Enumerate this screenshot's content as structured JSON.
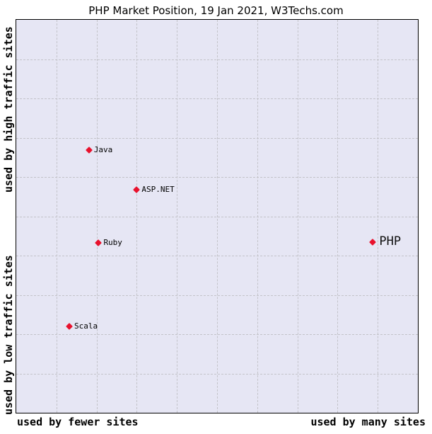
{
  "title": "PHP Market Position, 19 Jan 2021, W3Techs.com",
  "axes": {
    "y_top_label": "used by high traffic sites",
    "y_bottom_label": "used by low traffic sites",
    "x_left_label": "used by fewer sites",
    "x_right_label": "used by many sites"
  },
  "colors": {
    "marker": "#e8112d",
    "plot_bg": "#e6e6f4",
    "grid": "#c3c3c9",
    "border": "#000000"
  },
  "chart_data": {
    "type": "scatter",
    "title": "PHP Market Position, 19 Jan 2021, W3Techs.com",
    "x_axis": {
      "label_left": "used by fewer sites",
      "label_right": "used by many sites",
      "range_pct": [
        0,
        100
      ],
      "ticks": "none",
      "grid": true,
      "grid_divisions": 10
    },
    "y_axis": {
      "label_top": "used by high traffic sites",
      "label_bottom": "used by low traffic sites",
      "range_pct": [
        0,
        100
      ],
      "ticks": "none",
      "grid": true,
      "grid_divisions": 10
    },
    "legend": "none",
    "points": [
      {
        "name": "Java",
        "x_pct": 18.1,
        "y_pct_from_top": 33.2,
        "emphasis": false
      },
      {
        "name": "ASP.NET",
        "x_pct": 30.0,
        "y_pct_from_top": 43.3,
        "emphasis": false
      },
      {
        "name": "Ruby",
        "x_pct": 20.5,
        "y_pct_from_top": 56.7,
        "emphasis": false
      },
      {
        "name": "PHP",
        "x_pct": 88.8,
        "y_pct_from_top": 56.6,
        "emphasis": true
      },
      {
        "name": "Scala",
        "x_pct": 13.2,
        "y_pct_from_top": 78.1,
        "emphasis": false
      }
    ]
  }
}
